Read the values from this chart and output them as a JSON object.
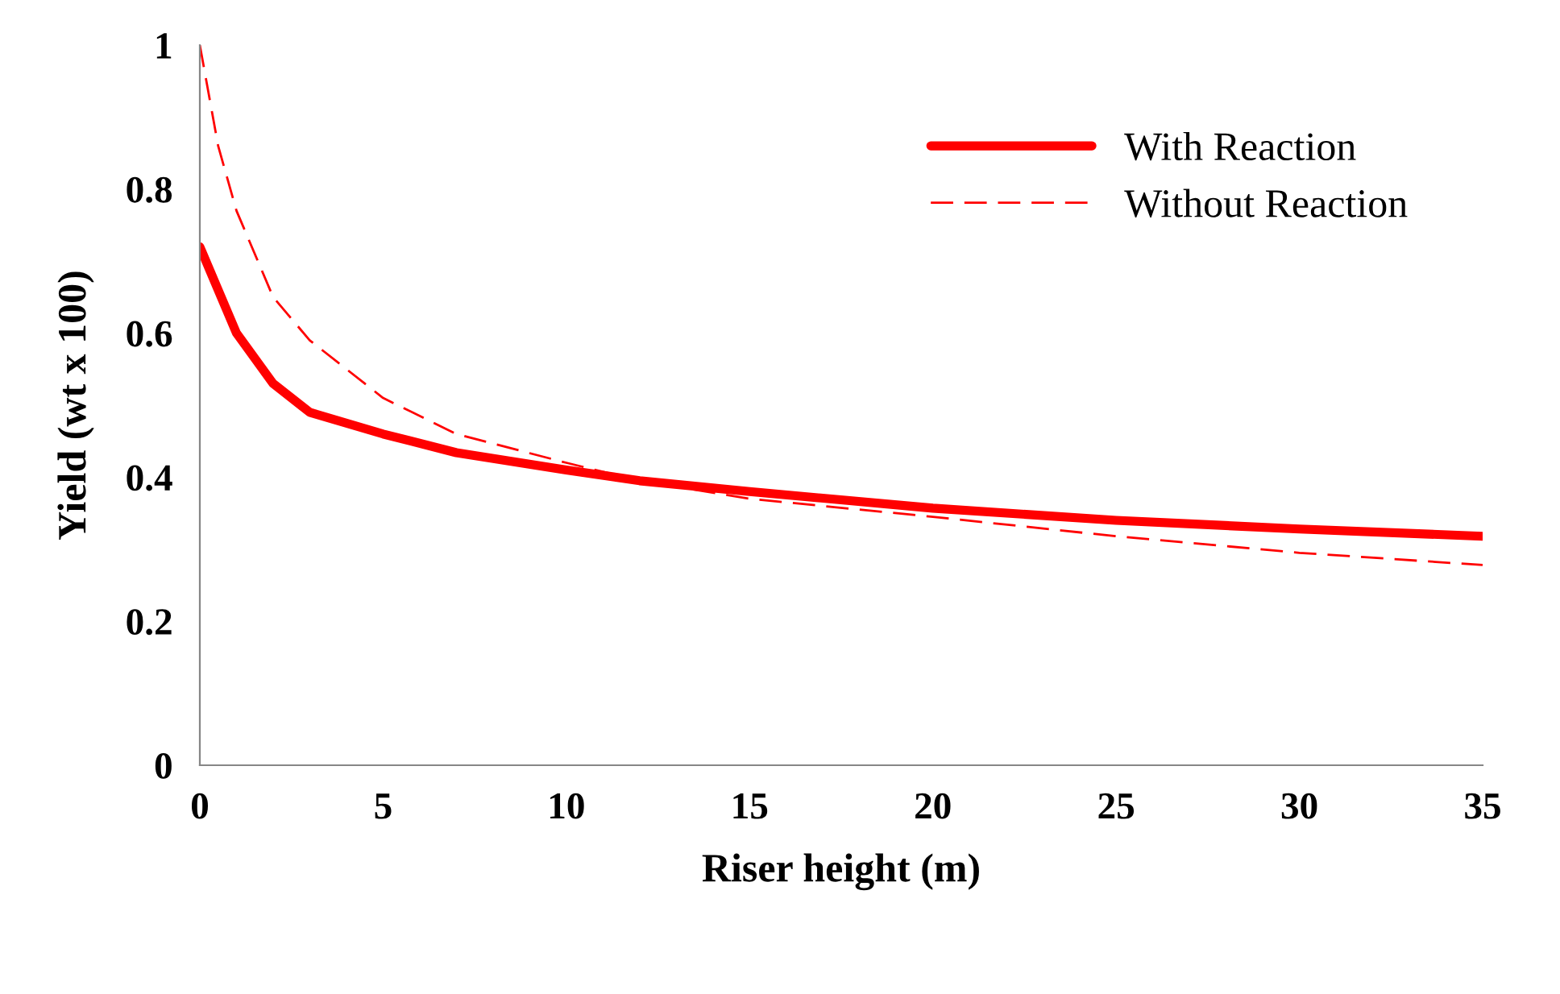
{
  "chart_data": {
    "type": "line",
    "xlabel": "Riser height (m)",
    "ylabel": "Yield (wt x 100)",
    "xlim": [
      0,
      35
    ],
    "xticks": [
      0,
      5,
      10,
      15,
      20,
      25,
      30,
      35
    ],
    "ylim": [
      0,
      1
    ],
    "yticks": [
      0,
      0.2,
      0.4,
      0.6,
      0.8,
      1
    ],
    "grid": false,
    "legend": "top right",
    "marker": "none",
    "series": [
      {
        "name": "With Reaction",
        "color": "#ff0000",
        "line_style": "solid",
        "x": [
          0,
          1,
          2,
          3,
          5,
          7,
          10,
          12,
          15,
          20,
          25,
          30,
          35
        ],
        "values": [
          0.72,
          0.6,
          0.53,
          0.49,
          0.46,
          0.434,
          0.41,
          0.395,
          0.38,
          0.357,
          0.34,
          0.328,
          0.318
        ]
      },
      {
        "name": "Without Reaction",
        "color": "#ff0000",
        "line_style": "dashed",
        "x": [
          0,
          0.5,
          1,
          2,
          3,
          5,
          7,
          10,
          12,
          15,
          20,
          25,
          30,
          35
        ],
        "values": [
          1.0,
          0.86,
          0.77,
          0.65,
          0.59,
          0.51,
          0.46,
          0.42,
          0.395,
          0.37,
          0.345,
          0.318,
          0.295,
          0.278
        ]
      }
    ]
  }
}
